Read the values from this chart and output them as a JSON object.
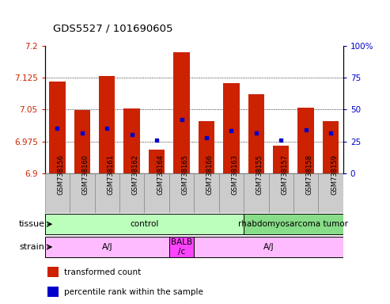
{
  "title": "GDS5527 / 101690605",
  "samples": [
    "GSM738156",
    "GSM738160",
    "GSM738161",
    "GSM738162",
    "GSM738164",
    "GSM738165",
    "GSM738166",
    "GSM738163",
    "GSM738155",
    "GSM738157",
    "GSM738158",
    "GSM738159"
  ],
  "bar_tops": [
    7.115,
    7.048,
    7.128,
    7.052,
    6.955,
    7.185,
    7.022,
    7.112,
    7.085,
    6.965,
    7.055,
    7.022
  ],
  "blue_dots": [
    7.005,
    6.995,
    7.005,
    6.99,
    6.978,
    7.027,
    6.983,
    7.0,
    6.995,
    6.978,
    7.003,
    6.995
  ],
  "bar_bottom": 6.9,
  "ylim": [
    6.9,
    7.2
  ],
  "y_ticks_left": [
    6.9,
    6.975,
    7.05,
    7.125,
    7.2
  ],
  "y_ticks_right": [
    0,
    25,
    50,
    75,
    100
  ],
  "bar_color": "#cc2200",
  "dot_color": "#0000cc",
  "tissue_groups": [
    {
      "label": "control",
      "start": 0,
      "end": 8,
      "color": "#bbffbb"
    },
    {
      "label": "rhabdomyosarcoma tumor",
      "start": 8,
      "end": 12,
      "color": "#88dd88"
    }
  ],
  "strain_groups": [
    {
      "label": "A/J",
      "start": 0,
      "end": 5,
      "color": "#ffbbff"
    },
    {
      "label": "BALB\n/c",
      "start": 5,
      "end": 6,
      "color": "#ff44ff"
    },
    {
      "label": "A/J",
      "start": 6,
      "end": 12,
      "color": "#ffbbff"
    }
  ],
  "tissue_label": "tissue",
  "strain_label": "strain",
  "legend_items": [
    {
      "label": "transformed count",
      "color": "#cc2200"
    },
    {
      "label": "percentile rank within the sample",
      "color": "#0000cc"
    }
  ],
  "tick_label_color_left": "#cc2200",
  "tick_label_color_right": "#0000cc",
  "bar_width": 0.65,
  "xtick_bg_color": "#cccccc",
  "xtick_border_color": "#888888"
}
